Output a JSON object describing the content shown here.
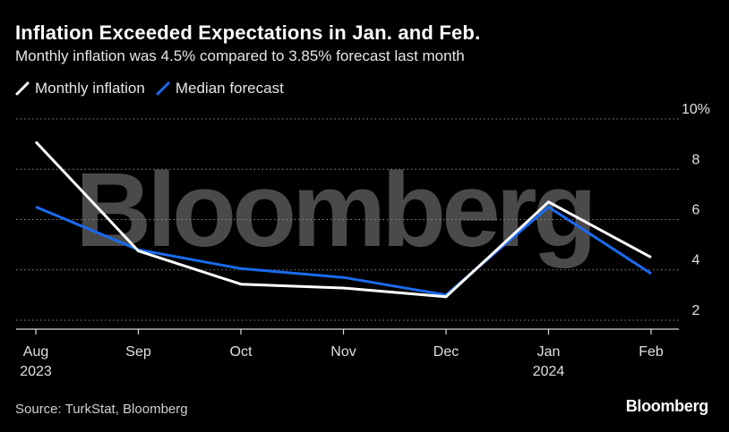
{
  "header": {
    "title": "Inflation Exceeded Expectations in Jan. and Feb.",
    "subtitle": "Monthly inflation was 4.5% compared to 3.85% forecast last month"
  },
  "legend": [
    {
      "label": "Monthly inflation",
      "color": "#ffffff"
    },
    {
      "label": "Median forecast",
      "color": "#1a6bf0"
    }
  ],
  "footer": {
    "source": "Source: TurkStat, Bloomberg",
    "brand": "Bloomberg"
  },
  "watermark": "Bloomberg",
  "chart_data": {
    "type": "line",
    "title": "Inflation Exceeded Expectations in Jan. and Feb.",
    "subtitle": "Monthly inflation was 4.5% compared to 3.85% forecast last month",
    "categories": [
      "Aug",
      "Sep",
      "Oct",
      "Nov",
      "Dec",
      "Jan",
      "Feb"
    ],
    "category_sublabels": [
      "2023",
      "",
      "",
      "",
      "",
      "2024",
      ""
    ],
    "series": [
      {
        "name": "Monthly inflation",
        "color": "#ffffff",
        "values": [
          9.09,
          4.75,
          3.43,
          3.28,
          2.93,
          6.7,
          4.5
        ]
      },
      {
        "name": "Median forecast",
        "color": "#1a6bf0",
        "values": [
          6.5,
          4.8,
          4.05,
          3.7,
          3.0,
          6.5,
          3.85
        ]
      }
    ],
    "y_ticks": [
      "2",
      "4",
      "6",
      "8",
      "10%"
    ],
    "y_tick_values": [
      2,
      4,
      6,
      8,
      10
    ],
    "ylim": [
      1.5,
      10.5
    ],
    "xlabel": "",
    "ylabel": "",
    "grid": true,
    "y_axis_side": "right"
  }
}
